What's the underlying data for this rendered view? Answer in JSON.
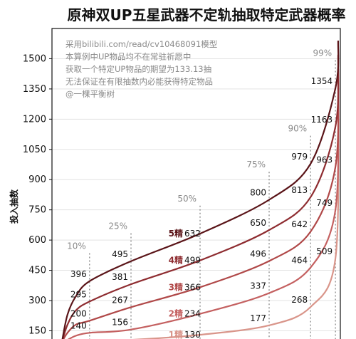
{
  "chart_data": {
    "type": "line",
    "title": "原神双UP五星武器不定轨抽取特定武器概率",
    "ylabel": "投入抽数",
    "ylim": [
      95,
      1650
    ],
    "yticks": [
      150,
      300,
      450,
      600,
      750,
      900,
      1050,
      1200,
      1350,
      1500
    ],
    "xlim": [
      0,
      100
    ],
    "notes": [
      "采用bilibili.com/read/cv10468091模型",
      "本算例中UP物品均不在常驻祈愿中",
      "获取一个特定UP物品的期望为133.13抽",
      "无法保证在有限抽数内必能获得特定物品",
      "@一棵平衡树"
    ],
    "percentile_markers": [
      {
        "label": "10%",
        "x": 10
      },
      {
        "label": "25%",
        "x": 25
      },
      {
        "label": "50%",
        "x": 50
      },
      {
        "label": "75%",
        "x": 75
      },
      {
        "label": "90%",
        "x": 90
      },
      {
        "label": "99%",
        "x": 99
      }
    ],
    "series": [
      {
        "name": "5精",
        "color": "#5a1418",
        "end": 1590,
        "x": [
          0,
          2,
          5,
          10,
          25,
          50,
          75,
          90,
          99
        ],
        "values": [
          95,
          230,
          320,
          396,
          495,
          632,
          800,
          979,
          1354
        ]
      },
      {
        "name": "4精",
        "color": "#8e2c30",
        "end": 1520,
        "x": [
          0,
          2,
          5,
          10,
          25,
          50,
          75,
          90,
          99
        ],
        "values": [
          95,
          180,
          250,
          295,
          381,
          499,
          650,
          813,
          1163
        ]
      },
      {
        "name": "3精",
        "color": "#b04848",
        "end": 1450,
        "x": [
          0,
          2,
          5,
          10,
          25,
          50,
          75,
          90,
          99
        ],
        "values": [
          95,
          140,
          180,
          200,
          267,
          366,
          496,
          642,
          963
        ]
      },
      {
        "name": "2精",
        "color": "#c46060",
        "end": 1380,
        "x": [
          0,
          2,
          5,
          10,
          25,
          50,
          75,
          90,
          99
        ],
        "values": [
          95,
          105,
          125,
          140,
          156,
          234,
          337,
          464,
          749
        ]
      },
      {
        "name": "1精",
        "color": "#d9958a",
        "end": 1310,
        "x": [
          0,
          2,
          5,
          10,
          25,
          50,
          75,
          90,
          99
        ],
        "values": [
          95,
          96,
          98,
          100,
          105,
          130,
          177,
          268,
          509
        ]
      }
    ]
  }
}
